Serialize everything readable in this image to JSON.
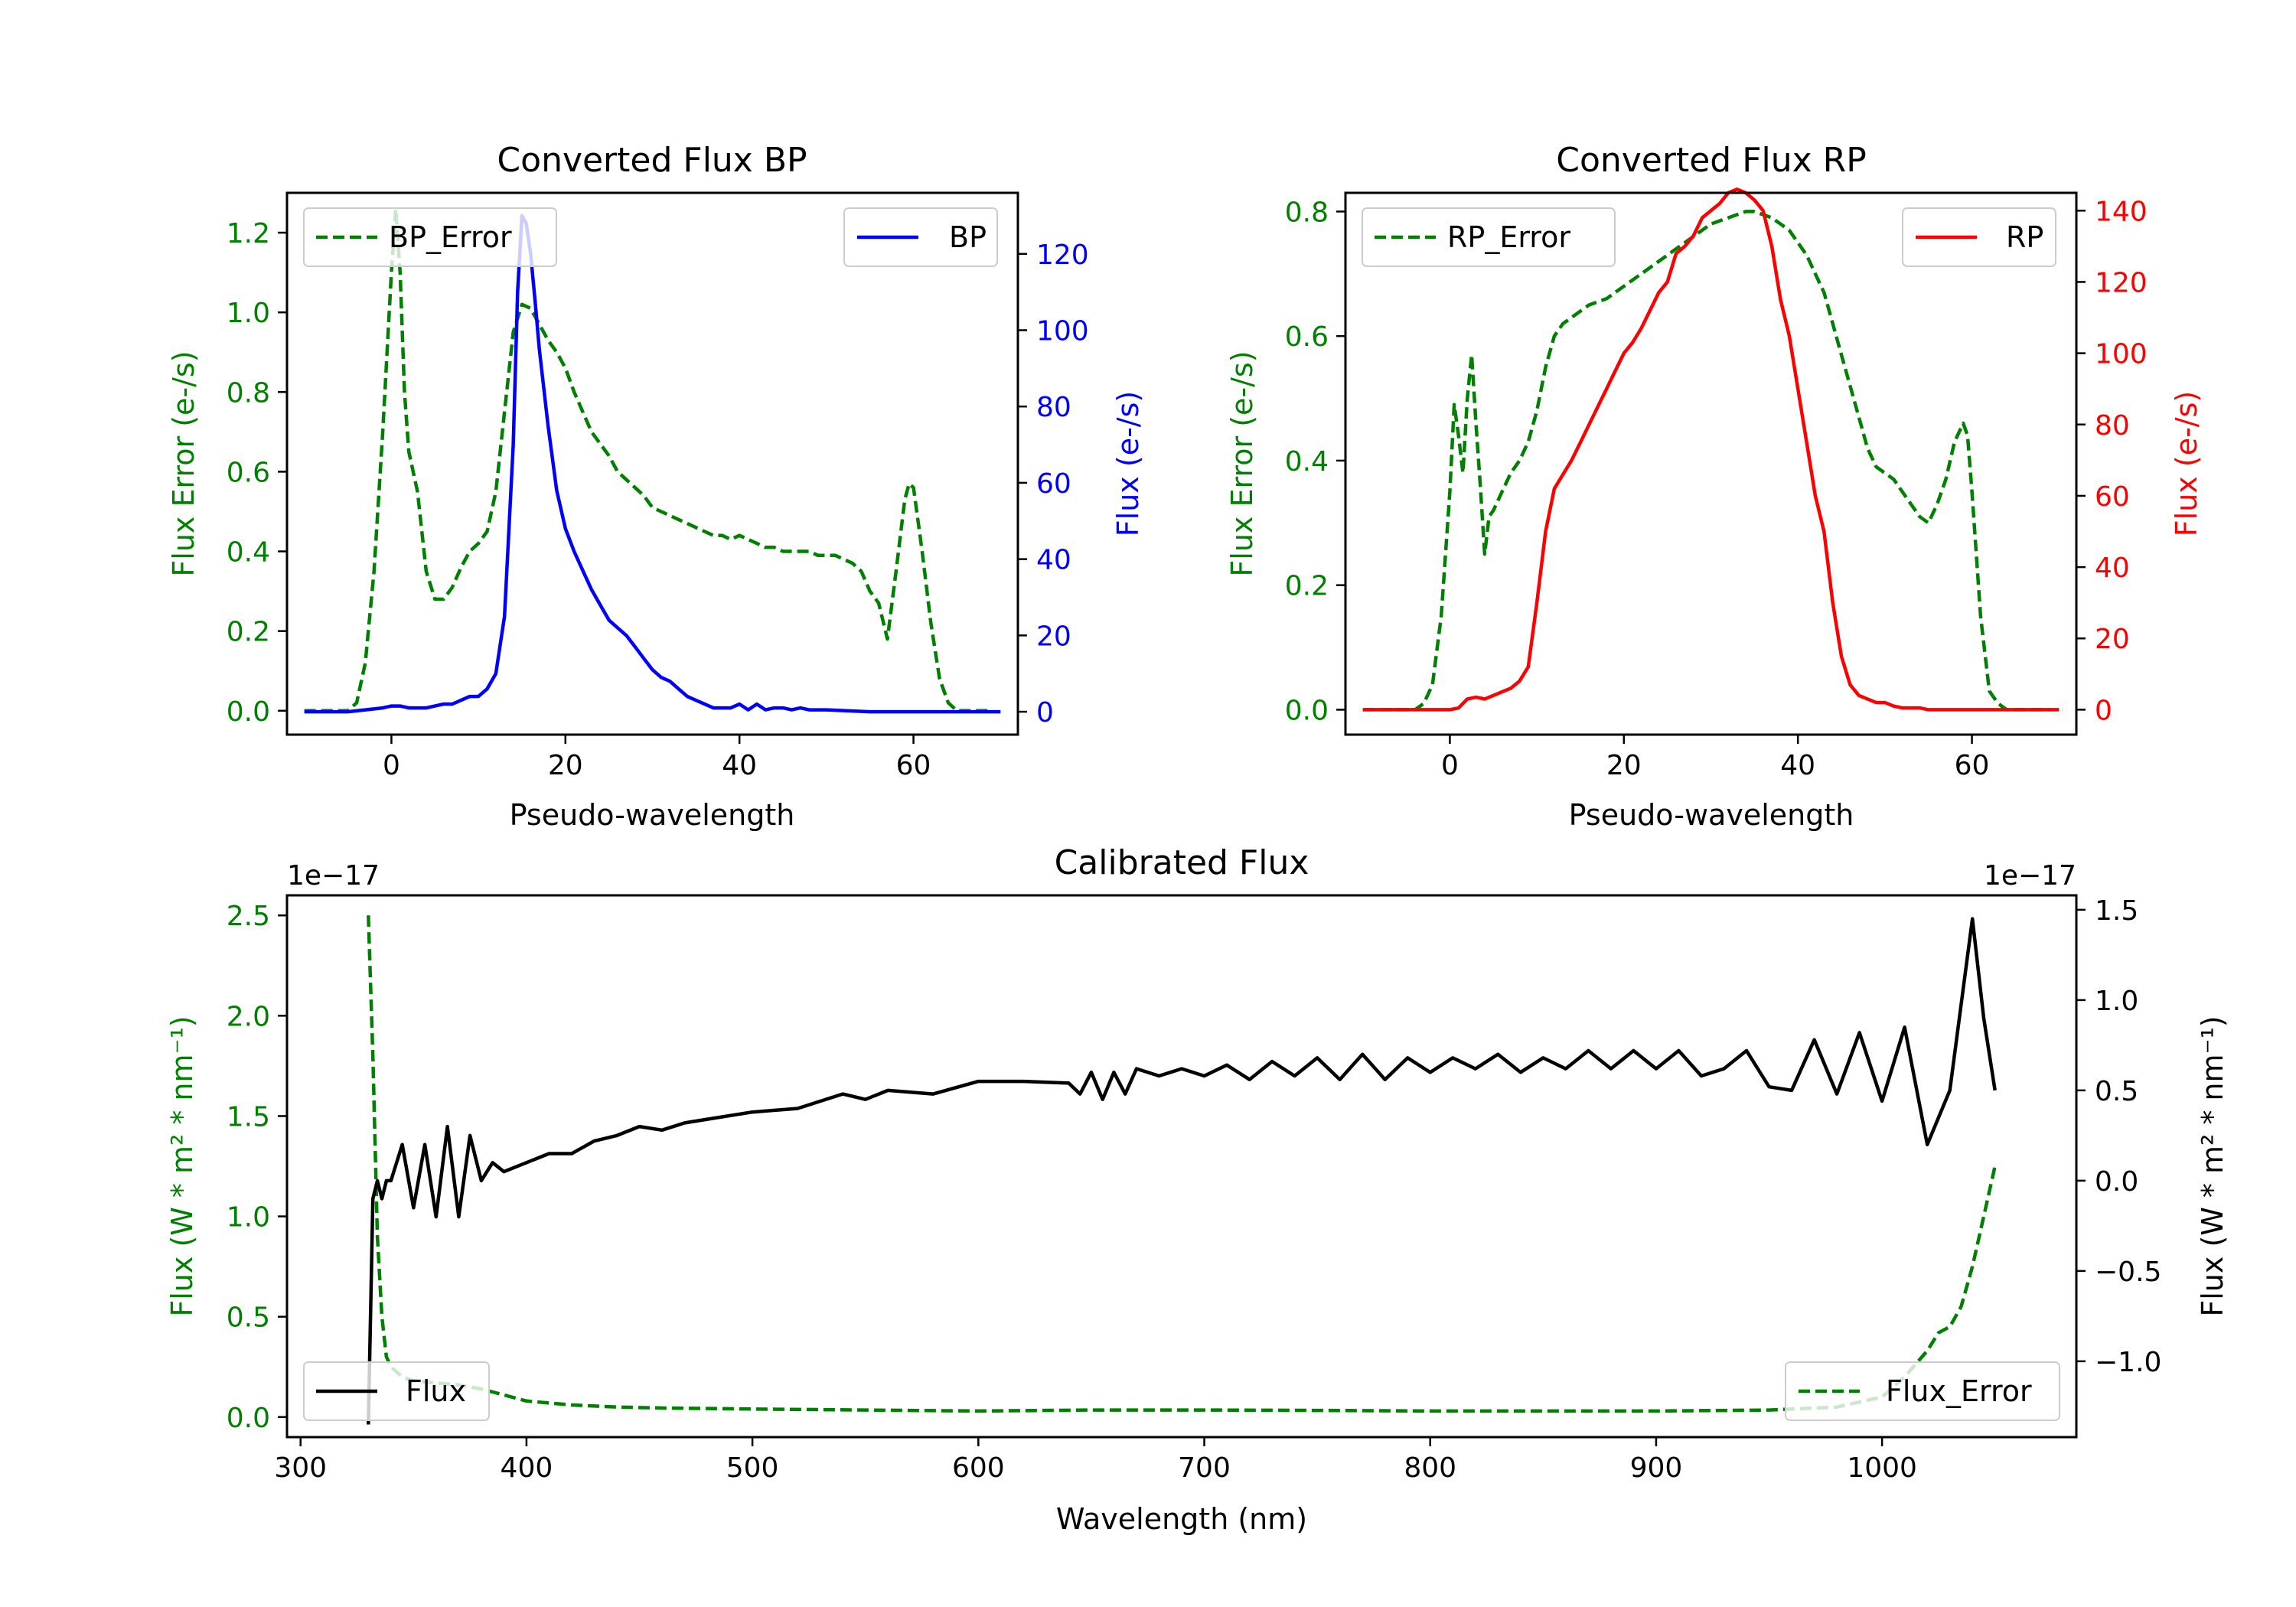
{
  "chart_data": [
    {
      "type": "line",
      "title": "Converted Flux BP",
      "xlabel": "Pseudo-wavelength",
      "ylabel_left": "Flux Error (e-/s)",
      "ylabel_right": "Flux (e-/s)",
      "xlim": [
        -12,
        72
      ],
      "ylim_left": [
        -0.06,
        1.3
      ],
      "ylim_right": [
        -6,
        136
      ],
      "xticks": [
        0,
        20,
        40,
        60
      ],
      "yticks_left": [
        0.0,
        0.2,
        0.4,
        0.6,
        0.8,
        1.0,
        1.2
      ],
      "yticks_right": [
        0,
        20,
        40,
        60,
        80,
        100,
        120
      ],
      "series": [
        {
          "name": "BP_Error",
          "axis": "left",
          "color": "#008000",
          "dash": "dashed",
          "x": [
            -10,
            -5,
            -4,
            -3,
            -2,
            -1,
            0,
            0.5,
            1,
            1.5,
            2,
            3,
            4,
            5,
            6,
            7,
            8,
            9,
            10,
            11,
            12,
            13,
            14,
            15,
            16,
            17,
            18,
            19,
            20,
            21,
            22,
            23,
            24,
            25,
            26,
            27,
            28,
            29,
            30,
            31,
            32,
            33,
            34,
            35,
            36,
            37,
            38,
            39,
            40,
            41,
            42,
            43,
            44,
            45,
            46,
            47,
            48,
            49,
            50,
            51,
            52,
            53,
            54,
            55,
            56,
            57,
            58,
            59,
            59.5,
            60,
            61,
            62,
            63,
            64,
            65,
            66,
            67,
            68,
            69
          ],
          "y": [
            0,
            0,
            0.02,
            0.12,
            0.35,
            0.7,
            1.1,
            1.26,
            1.1,
            0.8,
            0.65,
            0.55,
            0.35,
            0.28,
            0.28,
            0.31,
            0.36,
            0.4,
            0.42,
            0.45,
            0.55,
            0.75,
            0.95,
            1.02,
            1.01,
            0.97,
            0.93,
            0.9,
            0.86,
            0.8,
            0.75,
            0.7,
            0.67,
            0.64,
            0.6,
            0.58,
            0.56,
            0.54,
            0.51,
            0.5,
            0.49,
            0.48,
            0.47,
            0.46,
            0.45,
            0.44,
            0.44,
            0.43,
            0.44,
            0.43,
            0.42,
            0.41,
            0.41,
            0.4,
            0.4,
            0.4,
            0.4,
            0.39,
            0.39,
            0.39,
            0.38,
            0.37,
            0.35,
            0.3,
            0.27,
            0.18,
            0.35,
            0.53,
            0.57,
            0.56,
            0.4,
            0.22,
            0.08,
            0.02,
            0,
            0,
            0,
            0,
            0
          ]
        },
        {
          "name": "BP",
          "axis": "right",
          "color": "#0000ff",
          "dash": "solid",
          "x": [
            -10,
            -5,
            -3,
            -1,
            0,
            1,
            2,
            3,
            4,
            5,
            6,
            7,
            8,
            9,
            10,
            11,
            12,
            13,
            14,
            14.5,
            15,
            15.5,
            16,
            16.5,
            17,
            18,
            19,
            20,
            21,
            22,
            23,
            24,
            25,
            26,
            27,
            28,
            29,
            30,
            31,
            32,
            33,
            34,
            35,
            36,
            37,
            38,
            39,
            40,
            41,
            42,
            43,
            44,
            45,
            46,
            47,
            48,
            50,
            55,
            60,
            65,
            70
          ],
          "y": [
            0,
            0,
            0.5,
            1,
            1.5,
            1.5,
            1,
            1,
            1,
            1.5,
            2,
            2,
            3,
            4,
            4,
            6,
            10,
            25,
            70,
            110,
            130,
            128,
            120,
            108,
            95,
            75,
            58,
            48,
            42,
            37,
            32,
            28,
            24,
            22,
            20,
            17,
            14,
            11,
            9,
            8,
            6,
            4,
            3,
            2,
            1,
            1,
            1,
            2,
            0.5,
            2,
            0.5,
            1,
            1,
            0.5,
            1,
            0.5,
            0.5,
            0,
            0,
            0,
            0
          ]
        }
      ]
    },
    {
      "type": "line",
      "title": "Converted Flux RP",
      "xlabel": "Pseudo-wavelength",
      "ylabel_left": "Flux Error (e-/s)",
      "ylabel_right": "Flux (e-/s)",
      "xlim": [
        -12,
        72
      ],
      "ylim_left": [
        -0.04,
        0.83
      ],
      "ylim_right": [
        -7,
        145
      ],
      "xticks": [
        0,
        20,
        40,
        60
      ],
      "yticks_left": [
        0.0,
        0.2,
        0.4,
        0.6,
        0.8
      ],
      "yticks_right": [
        0,
        20,
        40,
        60,
        80,
        100,
        120,
        140
      ],
      "series": [
        {
          "name": "RP_Error",
          "axis": "left",
          "color": "#008000",
          "dash": "dashed",
          "x": [
            -10,
            -5,
            -4,
            -3,
            -2,
            -1,
            0,
            0.5,
            1,
            1.5,
            2,
            2.5,
            3,
            3.5,
            4,
            4.5,
            5,
            6,
            7,
            8,
            9,
            10,
            11,
            12,
            13,
            14,
            15,
            16,
            17,
            18,
            19,
            20,
            21,
            22,
            23,
            24,
            25,
            26,
            27,
            28,
            29,
            30,
            31,
            32,
            33,
            34,
            35,
            36,
            37,
            38,
            39,
            40,
            41,
            42,
            43,
            44,
            45,
            46,
            47,
            48,
            49,
            50,
            51,
            52,
            53,
            54,
            55,
            56,
            57,
            58,
            59,
            59.5,
            60,
            61,
            62,
            63,
            64,
            65,
            66,
            67,
            68,
            69
          ],
          "y": [
            0,
            0,
            0,
            0.01,
            0.04,
            0.15,
            0.35,
            0.49,
            0.44,
            0.38,
            0.5,
            0.57,
            0.46,
            0.36,
            0.25,
            0.31,
            0.32,
            0.35,
            0.38,
            0.4,
            0.43,
            0.48,
            0.55,
            0.6,
            0.62,
            0.63,
            0.64,
            0.65,
            0.655,
            0.66,
            0.67,
            0.68,
            0.69,
            0.7,
            0.71,
            0.72,
            0.73,
            0.74,
            0.75,
            0.76,
            0.77,
            0.78,
            0.785,
            0.79,
            0.795,
            0.8,
            0.8,
            0.795,
            0.79,
            0.78,
            0.77,
            0.75,
            0.73,
            0.7,
            0.67,
            0.62,
            0.57,
            0.52,
            0.47,
            0.42,
            0.39,
            0.38,
            0.37,
            0.35,
            0.33,
            0.31,
            0.3,
            0.33,
            0.37,
            0.43,
            0.46,
            0.44,
            0.35,
            0.15,
            0.03,
            0.01,
            0,
            0,
            0,
            0,
            0,
            0
          ]
        },
        {
          "name": "RP",
          "axis": "right",
          "color": "#ff0000",
          "dash": "solid",
          "x": [
            -10,
            -5,
            0,
            1,
            2,
            3,
            4,
            5,
            6,
            7,
            8,
            9,
            10,
            11,
            12,
            13,
            14,
            15,
            16,
            17,
            18,
            19,
            20,
            21,
            22,
            23,
            24,
            25,
            26,
            27,
            28,
            29,
            30,
            31,
            32,
            33,
            34,
            35,
            36,
            37,
            38,
            39,
            40,
            41,
            42,
            43,
            44,
            45,
            46,
            47,
            48,
            49,
            50,
            51,
            52,
            53,
            54,
            55,
            56,
            57,
            58,
            60,
            65,
            70
          ],
          "y": [
            0,
            0,
            0,
            0.5,
            3,
            3.5,
            3,
            4,
            5,
            6,
            8,
            12,
            30,
            50,
            62,
            66,
            70,
            75,
            80,
            85,
            90,
            95,
            100,
            103,
            107,
            112,
            117,
            120,
            128,
            130,
            133,
            138,
            140,
            142,
            145,
            146,
            145,
            143,
            140,
            130,
            115,
            105,
            90,
            75,
            60,
            50,
            30,
            15,
            7,
            4,
            3,
            2,
            2,
            1,
            0.5,
            0.5,
            0.5,
            0,
            0,
            0,
            0,
            0,
            0,
            0
          ]
        }
      ]
    },
    {
      "type": "line",
      "title": "Calibrated Flux",
      "xlabel": "Wavelength (nm)",
      "ylabel_left": "Flux (W * m² * nm⁻¹)",
      "ylabel_right": "Flux (W * m² * nm⁻¹)",
      "offset_left": "1e−17",
      "offset_right": "1e−17",
      "xlim": [
        294,
        1086
      ],
      "ylim_left": [
        -0.1,
        2.6
      ],
      "ylim_right": [
        -1.42,
        1.58
      ],
      "xticks": [
        300,
        400,
        500,
        600,
        700,
        800,
        900,
        1000
      ],
      "yticks_left": [
        0.0,
        0.5,
        1.0,
        1.5,
        2.0,
        2.5
      ],
      "yticks_right": [
        -1.0,
        -0.5,
        0.0,
        0.5,
        1.0,
        1.5
      ],
      "series": [
        {
          "name": "Flux_Error",
          "axis": "left",
          "color": "#008000",
          "dash": "dashed",
          "x": [
            330,
            332,
            334,
            336,
            338,
            340,
            345,
            350,
            360,
            370,
            380,
            390,
            400,
            420,
            440,
            460,
            500,
            550,
            600,
            650,
            700,
            750,
            800,
            850,
            900,
            950,
            980,
            1000,
            1010,
            1020,
            1025,
            1030,
            1035,
            1040,
            1045,
            1050
          ],
          "y": [
            2.5,
            1.8,
            0.9,
            0.5,
            0.3,
            0.25,
            0.2,
            0.18,
            0.17,
            0.16,
            0.14,
            0.11,
            0.08,
            0.06,
            0.05,
            0.045,
            0.04,
            0.035,
            0.03,
            0.035,
            0.035,
            0.033,
            0.03,
            0.03,
            0.03,
            0.035,
            0.05,
            0.1,
            0.2,
            0.33,
            0.42,
            0.45,
            0.55,
            0.75,
            1.0,
            1.25
          ]
        },
        {
          "name": "Flux",
          "axis": "right",
          "color": "#000000",
          "dash": "solid",
          "x": [
            330,
            332,
            334,
            336,
            338,
            340,
            345,
            350,
            355,
            360,
            365,
            370,
            375,
            380,
            385,
            390,
            400,
            410,
            420,
            430,
            440,
            450,
            460,
            470,
            480,
            500,
            520,
            540,
            550,
            560,
            580,
            600,
            620,
            640,
            645,
            650,
            655,
            660,
            665,
            670,
            680,
            690,
            700,
            710,
            720,
            730,
            740,
            750,
            760,
            770,
            780,
            790,
            800,
            810,
            820,
            830,
            840,
            850,
            860,
            870,
            880,
            890,
            900,
            910,
            920,
            930,
            940,
            950,
            960,
            970,
            980,
            990,
            1000,
            1010,
            1020,
            1030,
            1040,
            1045,
            1050
          ],
          "y": [
            -1.35,
            -0.1,
            0,
            -0.1,
            0,
            0,
            0.2,
            -0.15,
            0.2,
            -0.2,
            0.3,
            -0.2,
            0.25,
            0,
            0.1,
            0.05,
            0.1,
            0.15,
            0.15,
            0.22,
            0.25,
            0.3,
            0.28,
            0.32,
            0.34,
            0.38,
            0.4,
            0.48,
            0.45,
            0.5,
            0.48,
            0.55,
            0.55,
            0.54,
            0.48,
            0.6,
            0.45,
            0.6,
            0.48,
            0.62,
            0.58,
            0.62,
            0.58,
            0.64,
            0.56,
            0.66,
            0.58,
            0.68,
            0.56,
            0.7,
            0.56,
            0.68,
            0.6,
            0.68,
            0.62,
            0.7,
            0.6,
            0.68,
            0.62,
            0.72,
            0.62,
            0.72,
            0.62,
            0.72,
            0.58,
            0.62,
            0.72,
            0.52,
            0.5,
            0.78,
            0.48,
            0.82,
            0.44,
            0.85,
            0.2,
            0.5,
            1.45,
            0.9,
            0.5
          ]
        }
      ]
    }
  ]
}
